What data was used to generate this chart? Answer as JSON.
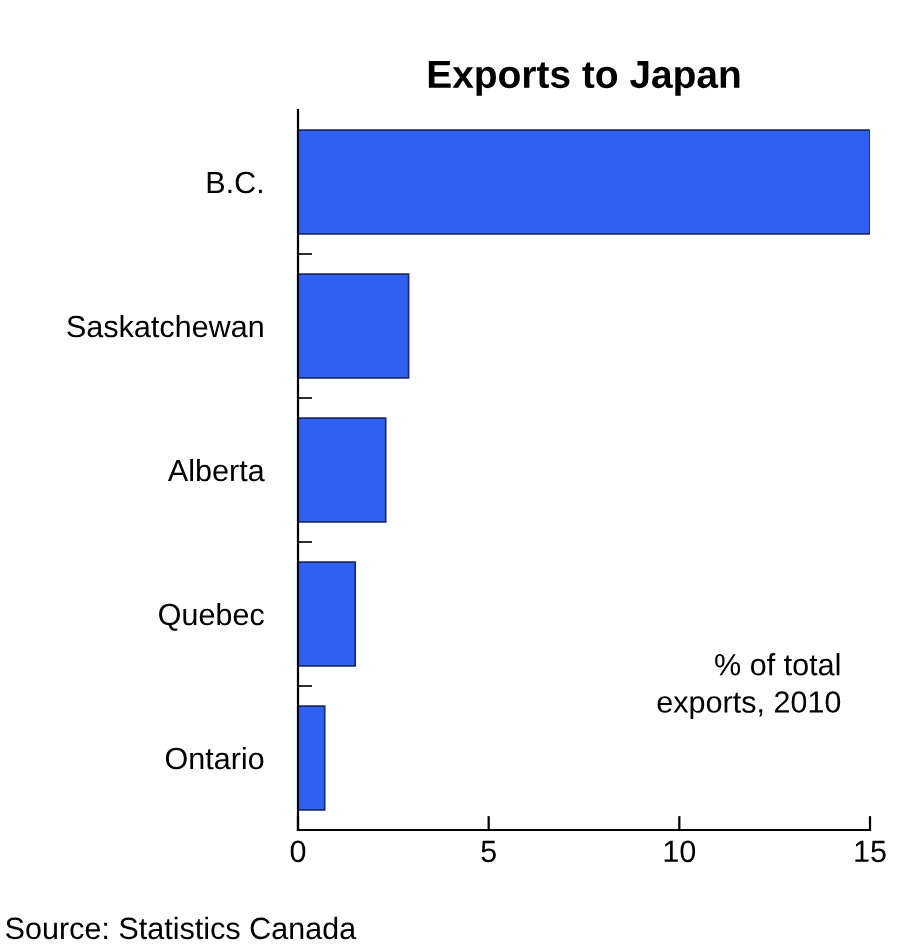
{
  "chart_data": {
    "type": "bar",
    "orientation": "horizontal",
    "title": "Exports to Japan",
    "categories": [
      "B.C.",
      "Saskatchewan",
      "Alberta",
      "Quebec",
      "Ontario"
    ],
    "values": [
      15.0,
      2.9,
      2.3,
      1.5,
      0.7
    ],
    "color": "#3060f0",
    "xlim": [
      0,
      15
    ],
    "xticks": [
      0,
      5,
      10,
      15
    ],
    "grid": false,
    "legend": false,
    "annotations": [
      "% of total\nexports, 2010",
      "Source: Statistics Canada"
    ]
  }
}
